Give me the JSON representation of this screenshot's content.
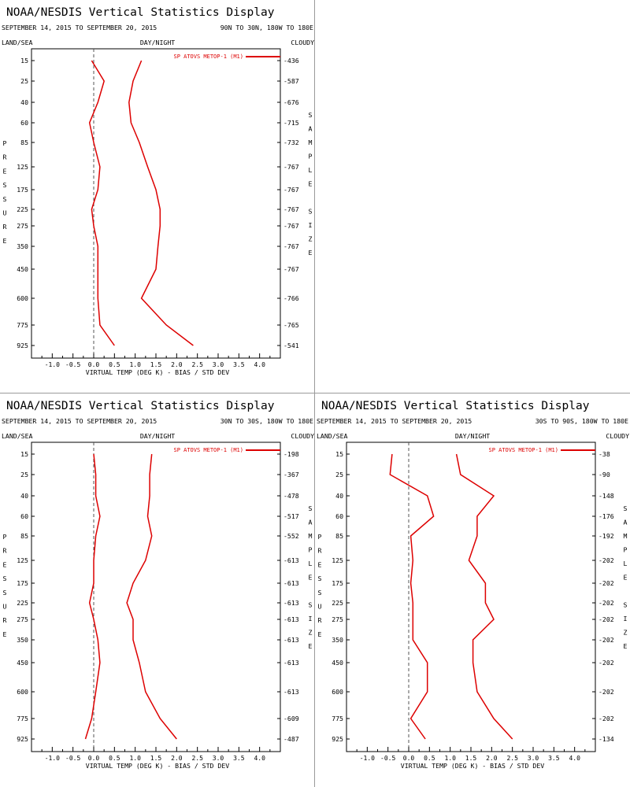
{
  "colors": {
    "series": "#dd0000",
    "frame": "#000000",
    "zero_line": "#555555",
    "divider": "#9a9a9a"
  },
  "chart_data": [
    {
      "type": "line",
      "title": "NOAA/NESDIS Vertical Statistics Display",
      "date_range": "SEPTEMBER 14, 2015 TO SEPTEMBER 20, 2015",
      "region": "90N TO 30N, 180W TO 180E",
      "top_left_label": "LAND/SEA",
      "top_center_label": "DAY/NIGHT",
      "top_right_label": "CLOUDY",
      "xlabel": "VIRTUAL TEMP (DEG K) - BIAS / STD DEV",
      "left_axis_label": "PRESSURE",
      "right_axis_label": "SAMPLE SIZE",
      "legend": "SP ATOVS METOP-1 (M1)",
      "legend_position": "top-right",
      "xlim": [
        -1.5,
        4.5
      ],
      "xticks": [
        "-1.0",
        "-0.5",
        "0.0",
        "0.5",
        "1.0",
        "1.5",
        "2.0",
        "2.5",
        "3.0",
        "3.5",
        "4.0"
      ],
      "zero_line": "dashed",
      "pressure_levels": [
        "15",
        "25",
        "40",
        "60",
        "85",
        "125",
        "175",
        "225",
        "275",
        "350",
        "450",
        "600",
        "775",
        "925"
      ],
      "sample_size": [
        "436",
        "587",
        "676",
        "715",
        "732",
        "767",
        "767",
        "767",
        "767",
        "767",
        "767",
        "766",
        "765",
        "541"
      ],
      "series": [
        {
          "name": "BIAS",
          "values": [
            -0.05,
            0.25,
            0.1,
            -0.1,
            0.0,
            0.15,
            0.1,
            -0.05,
            0.0,
            0.1,
            0.1,
            0.1,
            0.15,
            0.5
          ]
        },
        {
          "name": "STD DEV",
          "values": [
            1.15,
            0.95,
            0.85,
            0.9,
            1.1,
            1.3,
            1.5,
            1.6,
            1.6,
            1.55,
            1.5,
            1.15,
            1.75,
            2.4
          ]
        }
      ]
    },
    {
      "type": "line",
      "title": "NOAA/NESDIS Vertical Statistics Display",
      "date_range": "SEPTEMBER 14, 2015 TO SEPTEMBER 20, 2015",
      "region": "30N TO 30S, 180W TO 180E",
      "top_left_label": "LAND/SEA",
      "top_center_label": "DAY/NIGHT",
      "top_right_label": "CLOUDY",
      "xlabel": "VIRTUAL TEMP (DEG K) - BIAS / STD DEV",
      "left_axis_label": "PRESSURE",
      "right_axis_label": "SAMPLE SIZE",
      "legend": "SP ATOVS METOP-1 (M1)",
      "legend_position": "top-right",
      "xlim": [
        -1.5,
        4.5
      ],
      "xticks": [
        "-1.0",
        "-0.5",
        "0.0",
        "0.5",
        "1.0",
        "1.5",
        "2.0",
        "2.5",
        "3.0",
        "3.5",
        "4.0"
      ],
      "zero_line": "dashed",
      "pressure_levels": [
        "15",
        "25",
        "40",
        "60",
        "85",
        "125",
        "175",
        "225",
        "275",
        "350",
        "450",
        "600",
        "775",
        "925"
      ],
      "sample_size": [
        "198",
        "367",
        "478",
        "517",
        "552",
        "613",
        "613",
        "613",
        "613",
        "613",
        "613",
        "613",
        "609",
        "487"
      ],
      "series": [
        {
          "name": "BIAS",
          "values": [
            0.0,
            0.05,
            0.05,
            0.15,
            0.05,
            0.0,
            0.0,
            -0.1,
            0.0,
            0.1,
            0.15,
            0.05,
            -0.05,
            -0.2
          ]
        },
        {
          "name": "STD DEV",
          "values": [
            1.4,
            1.35,
            1.35,
            1.3,
            1.4,
            1.25,
            0.95,
            0.8,
            0.95,
            0.95,
            1.1,
            1.25,
            1.6,
            2.0
          ]
        }
      ]
    },
    {
      "type": "line",
      "title": "NOAA/NESDIS Vertical Statistics Display",
      "date_range": "SEPTEMBER 14, 2015 TO SEPTEMBER 20, 2015",
      "region": "30S TO 90S, 180W TO 180E",
      "top_left_label": "LAND/SEA",
      "top_center_label": "DAY/NIGHT",
      "top_right_label": "CLOUDY",
      "xlabel": "VIRTUAL TEMP (DEG K) - BIAS / STD DEV",
      "left_axis_label": "PRESSURE",
      "right_axis_label": "SAMPLE SIZE",
      "legend": "SP ATOVS METOP-1 (M1)",
      "legend_position": "top-right",
      "xlim": [
        -1.5,
        4.5
      ],
      "xticks": [
        "-1.0",
        "-0.5",
        "0.0",
        "0.5",
        "1.0",
        "1.5",
        "2.0",
        "2.5",
        "3.0",
        "3.5",
        "4.0"
      ],
      "zero_line": "dashed",
      "pressure_levels": [
        "15",
        "25",
        "40",
        "60",
        "85",
        "125",
        "175",
        "225",
        "275",
        "350",
        "450",
        "600",
        "775",
        "925"
      ],
      "sample_size": [
        "38",
        "90",
        "148",
        "176",
        "192",
        "202",
        "202",
        "202",
        "202",
        "202",
        "202",
        "202",
        "202",
        "134"
      ],
      "series": [
        {
          "name": "BIAS",
          "values": [
            -0.4,
            -0.45,
            0.45,
            0.6,
            0.05,
            0.1,
            0.05,
            0.1,
            0.1,
            0.1,
            0.45,
            0.45,
            0.05,
            0.4
          ]
        },
        {
          "name": "STD DEV",
          "values": [
            1.15,
            1.25,
            2.05,
            1.65,
            1.65,
            1.45,
            1.85,
            1.85,
            2.05,
            1.55,
            1.55,
            1.65,
            2.05,
            2.5
          ]
        }
      ]
    }
  ]
}
